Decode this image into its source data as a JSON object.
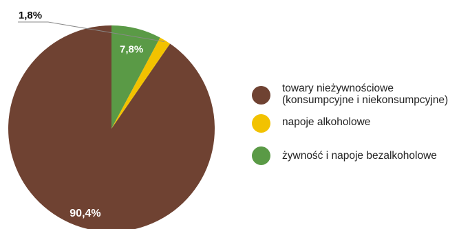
{
  "chart_data": {
    "type": "pie",
    "start_angle_deg": 0,
    "direction": "counterclockwise",
    "slices": [
      {
        "label": "towary nieżywnościowe\n(konsumpcyjne i niekonsumpcyjne)",
        "value": 90.4,
        "value_label": "90,4%",
        "color": "#6f4232"
      },
      {
        "label": "napoje alkoholowe",
        "value": 1.8,
        "value_label": "1,8%",
        "color": "#f2c200"
      },
      {
        "label": "żywność i napoje bezalkoholowe",
        "value": 7.8,
        "value_label": "7,8%",
        "color": "#5a9a46"
      }
    ],
    "legend_position": "right",
    "data_label_color_inside": "#ffffff",
    "data_label_color_outside": "#111111"
  }
}
